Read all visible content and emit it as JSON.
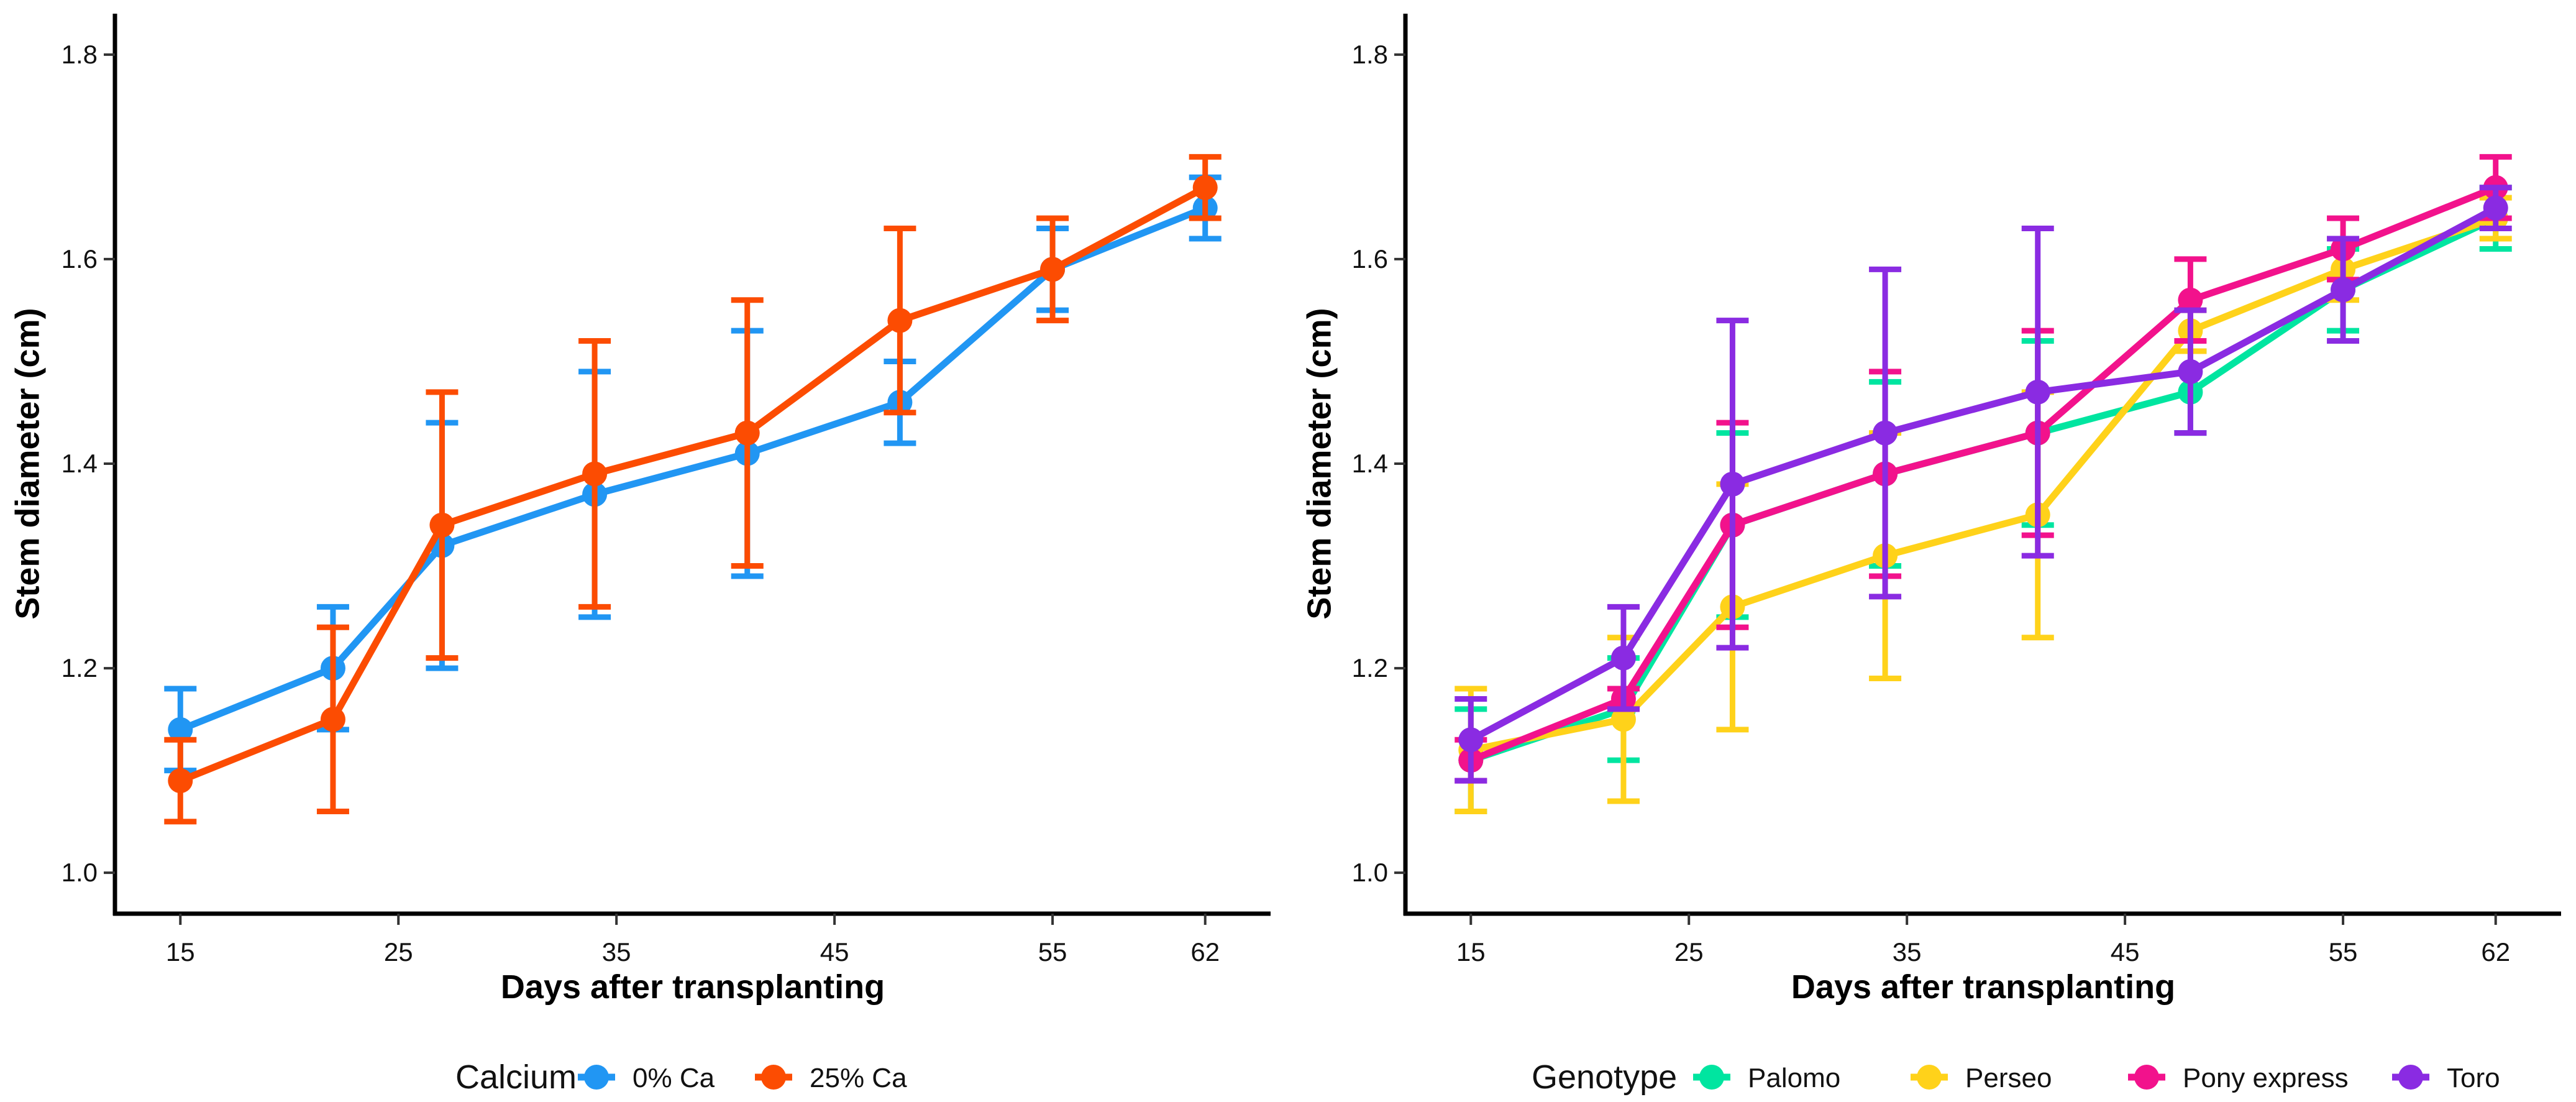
{
  "chart_data": [
    {
      "type": "line",
      "xlabel": "Days after transplanting",
      "ylabel": "Stem diameter (cm)",
      "xlim": [
        12,
        65
      ],
      "ylim": [
        0.96,
        1.84
      ],
      "x_ticks": [
        15,
        25,
        35,
        45,
        55,
        62
      ],
      "x_tick_labels": [
        "15",
        "25",
        "35",
        "45",
        "55",
        "62"
      ],
      "y_ticks": [
        1.0,
        1.2,
        1.4,
        1.6,
        1.8
      ],
      "y_tick_labels": [
        "1.0",
        "1.2",
        "1.4",
        "1.6",
        "1.8"
      ],
      "legend": {
        "title": "Calcium",
        "position": "bottom"
      },
      "x": [
        15,
        22,
        27,
        34,
        41,
        48,
        55,
        62
      ],
      "series": [
        {
          "name": "0% Ca",
          "color": "#2196f3",
          "values": [
            1.14,
            1.2,
            1.32,
            1.37,
            1.41,
            1.46,
            1.59,
            1.65
          ],
          "err_low": [
            1.1,
            1.14,
            1.2,
            1.25,
            1.29,
            1.42,
            1.55,
            1.62
          ],
          "err_high": [
            1.18,
            1.26,
            1.44,
            1.49,
            1.53,
            1.5,
            1.63,
            1.68
          ]
        },
        {
          "name": "25% Ca",
          "color": "#fc4c02",
          "values": [
            1.09,
            1.15,
            1.34,
            1.39,
            1.43,
            1.54,
            1.59,
            1.67
          ],
          "err_low": [
            1.05,
            1.06,
            1.21,
            1.26,
            1.3,
            1.45,
            1.54,
            1.64
          ],
          "err_high": [
            1.13,
            1.24,
            1.47,
            1.52,
            1.56,
            1.63,
            1.64,
            1.7
          ]
        }
      ]
    },
    {
      "type": "line",
      "xlabel": "Days after transplanting",
      "ylabel": "Stem diameter (cm)",
      "xlim": [
        12,
        65
      ],
      "ylim": [
        0.96,
        1.84
      ],
      "x_ticks": [
        15,
        25,
        35,
        45,
        55,
        62
      ],
      "x_tick_labels": [
        "15",
        "25",
        "35",
        "45",
        "55",
        "62"
      ],
      "y_ticks": [
        1.0,
        1.2,
        1.4,
        1.6,
        1.8
      ],
      "y_tick_labels": [
        "1.0",
        "1.2",
        "1.4",
        "1.6",
        "1.8"
      ],
      "legend": {
        "title": "Genotype",
        "position": "bottom"
      },
      "x": [
        15,
        22,
        27,
        34,
        41,
        48,
        55,
        62
      ],
      "series": [
        {
          "name": "Palomo",
          "color": "#00e5a0",
          "values": [
            1.11,
            1.16,
            1.34,
            1.39,
            1.43,
            1.47,
            1.57,
            1.64
          ],
          "err_low": [
            1.06,
            1.11,
            1.25,
            1.3,
            1.34,
            1.43,
            1.53,
            1.61
          ],
          "err_high": [
            1.16,
            1.21,
            1.43,
            1.48,
            1.52,
            1.51,
            1.61,
            1.67
          ]
        },
        {
          "name": "Perseo",
          "color": "#ffd21a",
          "values": [
            1.12,
            1.15,
            1.26,
            1.31,
            1.35,
            1.53,
            1.59,
            1.64
          ],
          "err_low": [
            1.06,
            1.07,
            1.14,
            1.19,
            1.23,
            1.51,
            1.56,
            1.62
          ],
          "err_high": [
            1.18,
            1.23,
            1.38,
            1.43,
            1.47,
            1.55,
            1.62,
            1.66
          ]
        },
        {
          "name": "Pony express",
          "color": "#f2128c",
          "values": [
            1.11,
            1.17,
            1.34,
            1.39,
            1.43,
            1.56,
            1.61,
            1.67
          ],
          "err_low": [
            1.09,
            1.16,
            1.24,
            1.29,
            1.33,
            1.52,
            1.58,
            1.64
          ],
          "err_high": [
            1.13,
            1.18,
            1.44,
            1.49,
            1.53,
            1.6,
            1.64,
            1.7
          ]
        },
        {
          "name": "Toro",
          "color": "#8a2be2",
          "values": [
            1.13,
            1.21,
            1.38,
            1.43,
            1.47,
            1.49,
            1.57,
            1.65
          ],
          "err_low": [
            1.09,
            1.16,
            1.22,
            1.27,
            1.31,
            1.43,
            1.52,
            1.63
          ],
          "err_high": [
            1.17,
            1.26,
            1.54,
            1.59,
            1.63,
            1.55,
            1.62,
            1.67
          ]
        }
      ]
    }
  ]
}
